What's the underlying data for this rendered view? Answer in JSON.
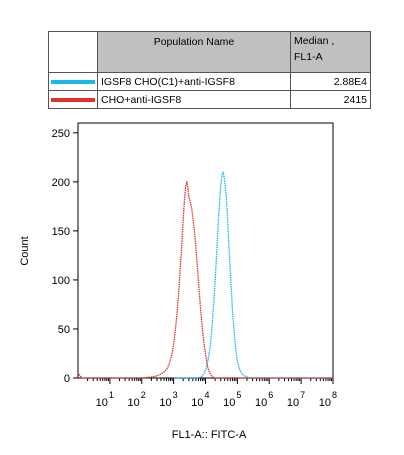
{
  "legend": {
    "header": {
      "name": "Population Name",
      "value": "Median ,\nFL1-A"
    },
    "rows": [
      {
        "name": "IGSF8 CHO(C1)+anti-IGSF8",
        "value": "2.88E4",
        "color": "#1ab8e8"
      },
      {
        "name": "CHO+anti-IGSF8",
        "value": "2415",
        "color": "#e03030"
      }
    ]
  },
  "chart_data": {
    "type": "line",
    "title": "",
    "xlabel": "FL1-A:: FITC-A",
    "ylabel": "Count",
    "xscale": "log",
    "xlim": [
      1,
      100000000
    ],
    "ylim": [
      0,
      260
    ],
    "y_ticks": [
      0,
      50,
      100,
      150,
      200,
      250
    ],
    "x_tick_labels": [
      "10^1",
      "10^2",
      "10^3",
      "10^4",
      "10^5",
      "10^6",
      "10^7",
      "10^8"
    ],
    "x_ticks": [
      10,
      100,
      1000,
      10000,
      100000,
      1000000,
      10000000,
      100000000
    ],
    "legend_position": "top",
    "grid": false,
    "series": [
      {
        "name": "IGSF8 CHO(C1)+anti-IGSF8",
        "color": "#1ab8e8",
        "x": [
          1000,
          3000,
          6000,
          8000,
          10000,
          12000,
          14000,
          16000,
          18000,
          20000,
          22000,
          24000,
          26000,
          28000,
          30000,
          33000,
          36000,
          40000,
          45000,
          50000,
          56000,
          63000,
          70000,
          80000,
          90000,
          100000,
          120000,
          140000,
          170000,
          200000,
          250000,
          350000,
          1000000,
          100000000
        ],
        "y": [
          0,
          0,
          0,
          2,
          8,
          18,
          32,
          52,
          75,
          98,
          122,
          145,
          165,
          182,
          196,
          207,
          210,
          201,
          185,
          158,
          127,
          97,
          70,
          45,
          28,
          17,
          8,
          4,
          2,
          1,
          0,
          0,
          0,
          0
        ]
      },
      {
        "name": "CHO+anti-IGSF8",
        "color": "#e03030",
        "x": [
          1,
          1.1,
          1.4,
          100,
          200,
          300,
          400,
          500,
          600,
          700,
          800,
          900,
          1000,
          1100,
          1200,
          1300,
          1450,
          1600,
          1800,
          2000,
          2200,
          2400,
          2600,
          2800,
          3000,
          3300,
          3600,
          4000,
          4500,
          5000,
          5600,
          6300,
          7000,
          8000,
          9000,
          10000,
          11000,
          12000,
          13500,
          15000,
          17000,
          20000,
          25000,
          35000,
          100000000
        ],
        "y": [
          6,
          3,
          0,
          0,
          1,
          2,
          4,
          6,
          9,
          13,
          19,
          26,
          34,
          45,
          56,
          70,
          88,
          110,
          135,
          162,
          182,
          196,
          200,
          194,
          185,
          180,
          175,
          164,
          150,
          133,
          112,
          90,
          70,
          50,
          35,
          25,
          16,
          10,
          5,
          3,
          1,
          0,
          0,
          0,
          0
        ]
      }
    ]
  }
}
